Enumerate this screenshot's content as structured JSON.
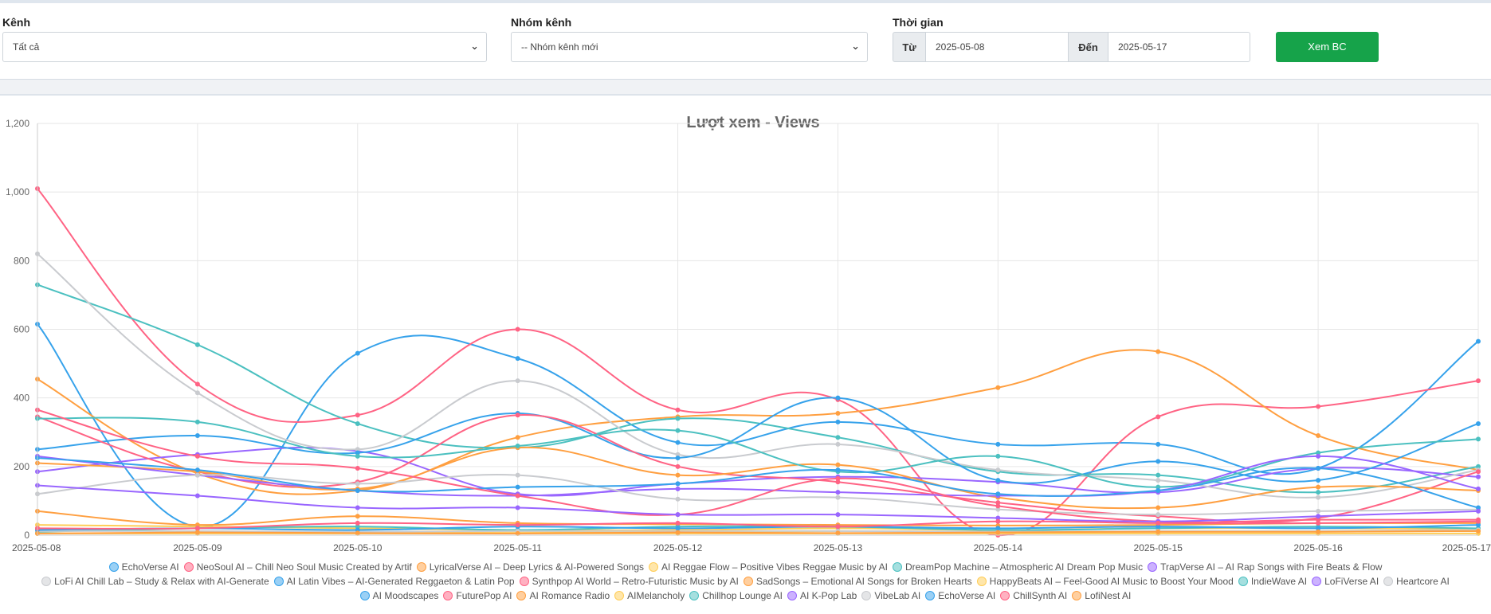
{
  "filters": {
    "channel_label": "Kênh",
    "channel_value": "Tất cả",
    "group_label": "Nhóm kênh",
    "group_value": "-- Nhóm kênh mới",
    "time_label": "Thời gian",
    "from_label": "Từ",
    "from_value": "2025-05-08",
    "to_label": "Đến",
    "to_value": "2025-05-17",
    "submit_label": "Xem BC"
  },
  "colors": {
    "accent": "#16a34a"
  },
  "chart_data": {
    "type": "line",
    "title": "Lượt xem - Views",
    "xlabel": "",
    "ylabel": "",
    "ylim": [
      0,
      1200
    ],
    "yticks": [
      "0",
      "200",
      "400",
      "600",
      "800",
      "1,000",
      "1,200"
    ],
    "grid": true,
    "legend_position": "bottom",
    "categories": [
      "2025-05-08",
      "2025-05-09",
      "2025-05-10",
      "2025-05-11",
      "2025-05-12",
      "2025-05-13",
      "2025-05-14",
      "2025-05-15",
      "2025-05-16",
      "2025-05-17"
    ],
    "series": [
      {
        "name": "EchoVerse AI",
        "color": "#36a2eb",
        "values": [
          615,
          25,
          530,
          515,
          270,
          330,
          265,
          265,
          195,
          565
        ]
      },
      {
        "name": "NeoSoul AI – Chill Neo Soul Music Created by Artif",
        "color": "#ff6384",
        "values": [
          1010,
          440,
          350,
          600,
          365,
          395,
          0,
          345,
          375,
          450
        ]
      },
      {
        "name": "LyricalVerse AI – Deep Lyrics & AI-Powered Songs",
        "color": "#ff9f40",
        "values": [
          455,
          180,
          130,
          285,
          345,
          355,
          430,
          535,
          290,
          190
        ]
      },
      {
        "name": "AI Reggae Flow – Positive Vibes Reggae Music by AI",
        "color": "#ffcd56",
        "values": [
          20,
          10,
          8,
          10,
          10,
          12,
          10,
          10,
          10,
          12
        ]
      },
      {
        "name": "DreamPop Machine – Atmospheric AI Dream Pop Music",
        "color": "#4bc0c0",
        "values": [
          730,
          555,
          325,
          255,
          340,
          285,
          185,
          175,
          125,
          200
        ]
      },
      {
        "name": "TrapVerse AI – AI Rap Songs with Fire Beats & Flow",
        "color": "#9966ff",
        "values": [
          185,
          235,
          245,
          120,
          150,
          170,
          155,
          125,
          195,
          170
        ]
      },
      {
        "name": "LoFi AI Chill Lab – Study & Relax with AI-Generate",
        "color": "#c9cbcf",
        "values": [
          820,
          415,
          250,
          450,
          235,
          265,
          190,
          160,
          110,
          190
        ]
      },
      {
        "name": "AI Latin Vibes – AI-Generated Reggaeton & Latin Pop",
        "color": "#36a2eb",
        "values": [
          250,
          290,
          240,
          355,
          225,
          400,
          160,
          215,
          160,
          325
        ]
      },
      {
        "name": "Synthpop AI World – Retro-Futuristic Music by AI",
        "color": "#ff6384",
        "values": [
          345,
          185,
          155,
          350,
          200,
          155,
          95,
          55,
          50,
          185
        ]
      },
      {
        "name": "SadSongs – Emotional AI Songs for Broken Hearts",
        "color": "#ff9f40",
        "values": [
          210,
          185,
          135,
          255,
          175,
          205,
          110,
          80,
          140,
          130
        ]
      },
      {
        "name": "HappyBeats AI – Feel-Good AI Music to Boost Your Mood",
        "color": "#ffcd56",
        "values": [
          30,
          25,
          20,
          15,
          15,
          20,
          15,
          20,
          20,
          18
        ]
      },
      {
        "name": "IndieWave AI",
        "color": "#4bc0c0",
        "values": [
          340,
          330,
          230,
          260,
          305,
          185,
          230,
          140,
          240,
          280
        ]
      },
      {
        "name": "LoFiVerse AI",
        "color": "#9966ff",
        "values": [
          230,
          175,
          130,
          115,
          135,
          125,
          115,
          130,
          230,
          135
        ]
      },
      {
        "name": "Heartcore AI",
        "color": "#c9cbcf",
        "values": [
          120,
          175,
          150,
          175,
          105,
          110,
          75,
          60,
          70,
          75
        ]
      },
      {
        "name": "AI Moodscapes",
        "color": "#36a2eb",
        "values": [
          225,
          190,
          130,
          140,
          150,
          190,
          120,
          130,
          195,
          80
        ]
      },
      {
        "name": "FuturePop AI",
        "color": "#ff6384",
        "values": [
          365,
          230,
          195,
          115,
          60,
          165,
          85,
          40,
          45,
          45
        ]
      },
      {
        "name": "AI Romance Radio",
        "color": "#ff9f40",
        "values": [
          70,
          30,
          55,
          35,
          32,
          30,
          28,
          30,
          35,
          35
        ]
      },
      {
        "name": "AIMelancholy",
        "color": "#ffcd56",
        "values": [
          5,
          5,
          5,
          5,
          5,
          5,
          5,
          5,
          5,
          5
        ]
      },
      {
        "name": "Chillhop Lounge AI",
        "color": "#4bc0c0",
        "values": [
          10,
          20,
          25,
          15,
          25,
          25,
          15,
          20,
          25,
          20
        ]
      },
      {
        "name": "AI K-Pop Lab",
        "color": "#9966ff",
        "values": [
          145,
          115,
          80,
          80,
          60,
          60,
          50,
          40,
          55,
          70
        ]
      },
      {
        "name": "VibeLab AI",
        "color": "#c9cbcf",
        "values": [
          12,
          12,
          10,
          12,
          12,
          12,
          10,
          12,
          12,
          15
        ]
      },
      {
        "name": "EchoVerse AI",
        "color": "#36a2eb",
        "values": [
          15,
          20,
          15,
          25,
          20,
          25,
          20,
          25,
          20,
          30
        ]
      },
      {
        "name": "ChillSynth AI",
        "color": "#ff6384",
        "values": [
          20,
          20,
          35,
          30,
          35,
          25,
          40,
          35,
          35,
          40
        ]
      },
      {
        "name": "LofiNest AI",
        "color": "#ff9f40",
        "values": [
          5,
          8,
          6,
          5,
          8,
          6,
          8,
          10,
          10,
          12
        ]
      }
    ]
  }
}
